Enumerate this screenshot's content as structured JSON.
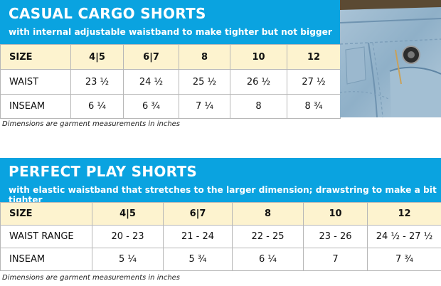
{
  "cargo": {
    "title": "CASUAL CARGO SHORTS",
    "subtitle": "with internal adjustable waistband to make tighter but not bigger",
    "rows": [
      {
        "label": "SIZE",
        "values": [
          "4|5",
          "6|7",
          "8",
          "10",
          "12"
        ]
      },
      {
        "label": "WAIST",
        "values": [
          "23 ½",
          "24 ½",
          "25 ½",
          "26 ½",
          "27 ½"
        ]
      },
      {
        "label": "INSEAM",
        "values": [
          "6 ¼",
          "6 ¾",
          "7 ¼",
          "8",
          "8 ¾"
        ]
      }
    ],
    "note": "Dimensions are garment measurements in inches"
  },
  "play": {
    "title": "PERFECT PLAY SHORTS",
    "subtitle": "with elastic waistband that stretches to the larger dimension; drawstring to make a bit tighter",
    "rows": [
      {
        "label": "SIZE",
        "values": [
          "4|5",
          "6|7",
          "8",
          "10",
          "12"
        ]
      },
      {
        "label": "WAIST RANGE",
        "values": [
          "20 - 23",
          "21 - 24",
          "22 - 25",
          "23 - 26",
          "24 ½ - 27 ½"
        ]
      },
      {
        "label": "INSEAM",
        "values": [
          "5 ¼",
          "5 ¾",
          "6 ¼",
          "7",
          "7 ¾"
        ]
      }
    ],
    "note": "Dimensions are garment measurements in inches"
  },
  "colors": {
    "banner": "#0aa3e0",
    "size_row": "#fdf3cf",
    "grid": "#b7b7b7"
  },
  "photo_icon": "denim-shorts-photo"
}
